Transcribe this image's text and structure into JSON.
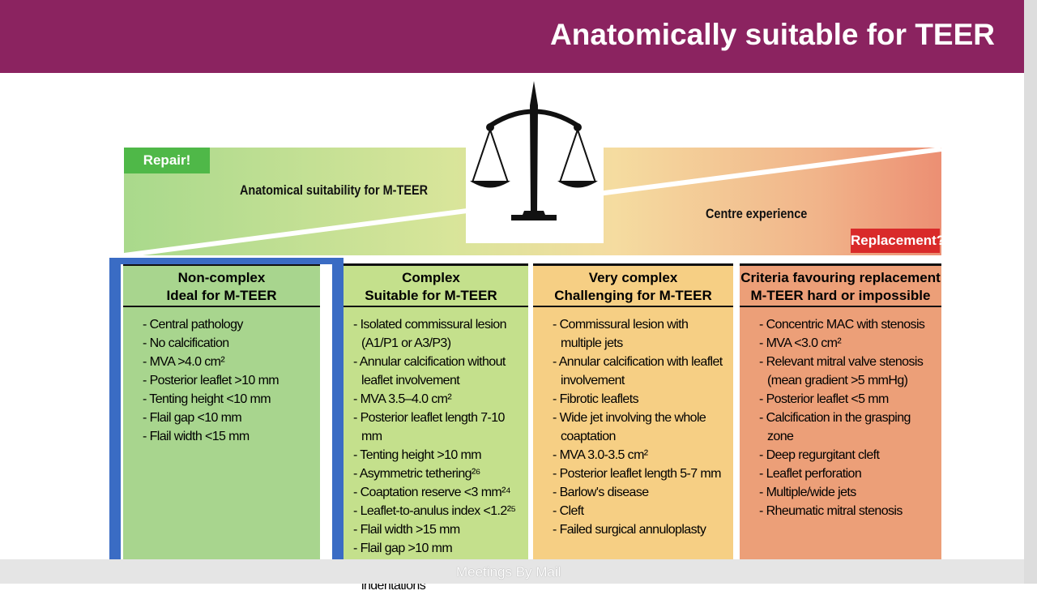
{
  "header": {
    "title": "Anatomically suitable for TEER"
  },
  "banner": {
    "left_tag": "Repair!",
    "left_label": "Anatomical suitability for M-TEER",
    "right_label": "Centre experience",
    "right_tag": "Replacement?"
  },
  "columns": [
    {
      "heading": [
        "Non-complex",
        "Ideal for M-TEER"
      ],
      "items": [
        "Central pathology",
        "No calcification",
        "MVA >4.0 cm²",
        "Posterior leaflet >10 mm",
        "Tenting height <10 mm",
        "Flail gap <10 mm",
        "Flail width <15 mm"
      ]
    },
    {
      "heading": [
        "Complex",
        "Suitable for M-TEER"
      ],
      "items": [
        "Isolated commissural lesion (A1/P1 or A3/P3)",
        "Annular calcification without leaflet involvement",
        "MVA 3.5–4.0 cm²",
        "Posterior leaflet length 7-10 mm",
        "Tenting height >10 mm",
        "Asymmetric tethering²⁶",
        "Coaptation reserve <3 mm²⁴",
        "Leaflet-to-anulus index <1.2²⁵",
        "Flail width >15 mm",
        "Flail gap >10 mm",
        "Two jets from leaflet indentations"
      ]
    },
    {
      "heading": [
        "Very complex",
        "Challenging for M-TEER"
      ],
      "items": [
        "Commissural lesion with multiple jets",
        "Annular calcification with leaflet involvement",
        "Fibrotic leaflets",
        "Wide jet involving the whole coaptation",
        "MVA 3.0-3.5 cm²",
        "Posterior leaflet length 5-7 mm",
        "Barlow's disease",
        "Cleft",
        "Failed surgical annuloplasty"
      ]
    },
    {
      "heading": [
        "Criteria favouring replacement",
        "M-TEER hard or impossible"
      ],
      "items": [
        "Concentric MAC with stenosis",
        "MVA <3.0 cm²",
        "Relevant mitral valve stenosis (mean gradient >5 mmHg)",
        "Posterior leaflet <5 mm",
        "Calcification in the grasping zone",
        "Deep regurgitant cleft",
        "Leaflet perforation",
        "Multiple/wide jets",
        "Rheumatic mitral stenosis"
      ]
    }
  ],
  "footer": {
    "watermark": "Meetings By Mail"
  }
}
